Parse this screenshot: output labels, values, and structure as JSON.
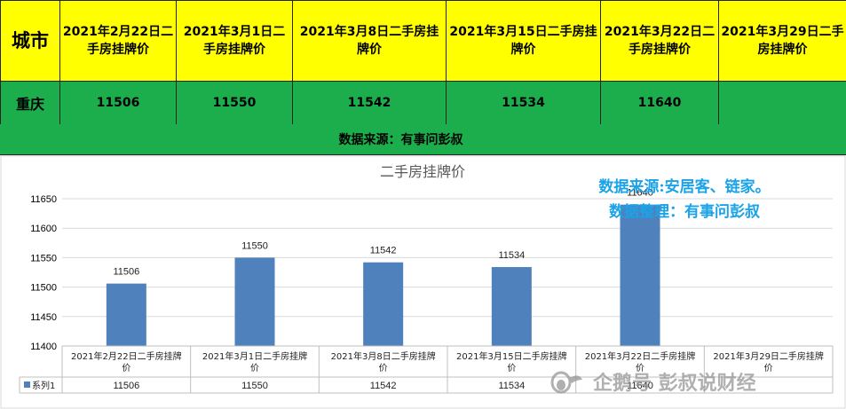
{
  "table": {
    "city_header": "城市",
    "columns": [
      "2021年2月22日二手房挂牌价",
      "2021年3月1日二手房挂牌价",
      "2021年3月8日二手房挂牌价",
      "2021年3月15日二手房挂牌价",
      "2021年3月22日二手房挂牌价",
      "2021年3月29日二手房挂牌价"
    ],
    "row": {
      "city": "重庆",
      "values": [
        "11506",
        "11550",
        "11542",
        "11534",
        "11640",
        ""
      ]
    },
    "source_note": "数据来源：有事问彭叔"
  },
  "chart_data": {
    "type": "bar",
    "title": "二手房挂牌价",
    "categories": [
      "2021年2月22日二手房挂牌价",
      "2021年3月1日二手房挂牌价",
      "2021年3月8日二手房挂牌价",
      "2021年3月15日二手房挂牌价",
      "2021年3月22日二手房挂牌价",
      "2021年3月29日二手房挂牌价"
    ],
    "series": [
      {
        "name": "系列1",
        "values": [
          11506,
          11550,
          11542,
          11534,
          11640,
          null
        ]
      }
    ],
    "ylim": [
      11400,
      11650
    ],
    "yticks": [
      11400,
      11450,
      11500,
      11550,
      11600,
      11650
    ],
    "grid": true,
    "legend": "data-table-left",
    "bar_color": "#4f81bd"
  },
  "annotation": {
    "line1": "数据来源:安居客、链家。",
    "line2": "数据整理：有事问彭叔"
  },
  "watermark": {
    "text": "企鹅号 彭叔说财经"
  }
}
